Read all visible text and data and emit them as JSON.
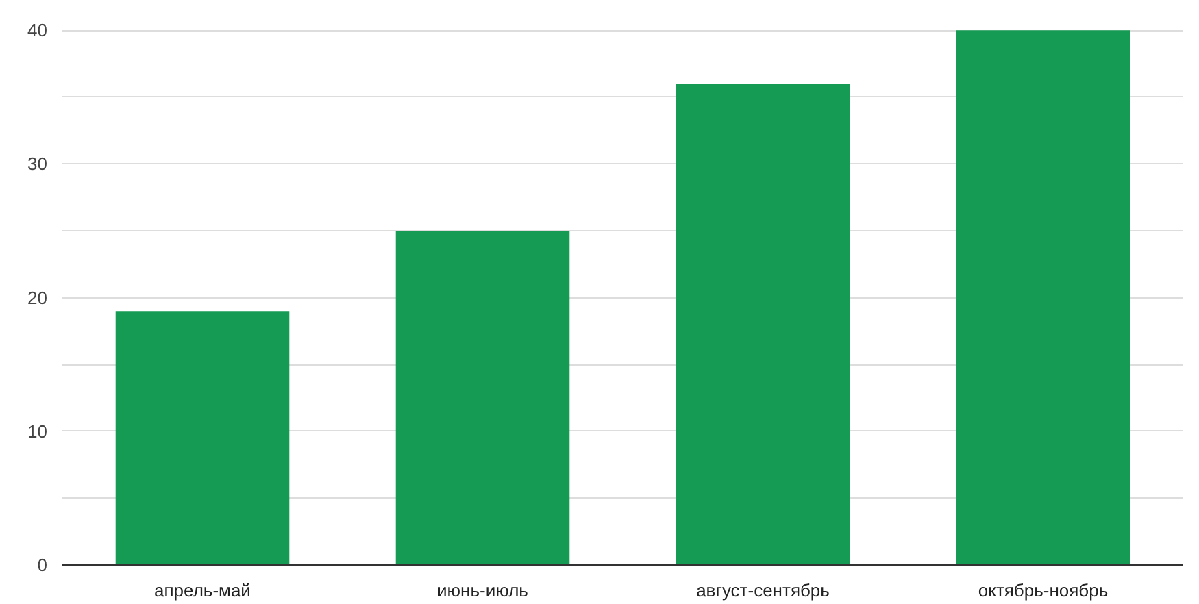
{
  "chart_data": {
    "type": "bar",
    "categories": [
      "апрель-май",
      "июнь-июль",
      "август-сентябрь",
      "октябрь-ноябрь"
    ],
    "values": [
      19,
      25,
      36,
      40
    ],
    "color": "#169b54",
    "ylim": [
      0,
      40
    ],
    "yticks": [
      0,
      {
        "value": 5,
        "label": null
      },
      10,
      {
        "value": 15,
        "label": null
      },
      20,
      {
        "value": 25,
        "label": null
      },
      30,
      {
        "value": 35,
        "label": null
      },
      40
    ],
    "grid": "y"
  }
}
